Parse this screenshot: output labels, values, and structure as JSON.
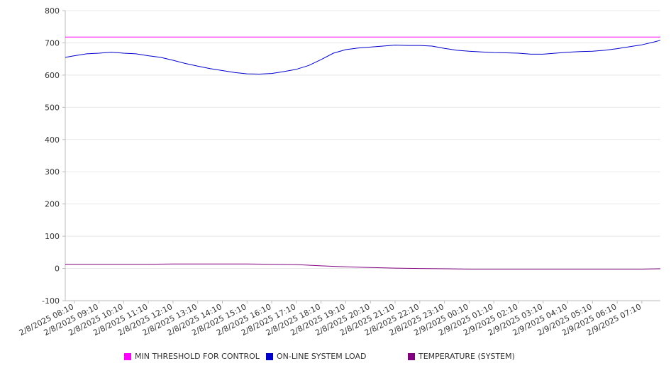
{
  "chart_data": {
    "type": "line",
    "ylim": [
      -100,
      800
    ],
    "yticks": [
      -100,
      0,
      100,
      200,
      300,
      400,
      500,
      600,
      700,
      800
    ],
    "grid": true,
    "legend_position": "bottom",
    "xlim": [
      "2/8/2025 07:48",
      "2/9/2025 07:55"
    ],
    "x_tick_labels": [
      "2/8/2025 08:10",
      "2/8/2025 09:10",
      "2/8/2025 10:10",
      "2/8/2025 11:10",
      "2/8/2025 12:10",
      "2/8/2025 13:10",
      "2/8/2025 14:10",
      "2/8/2025 15:10",
      "2/8/2025 16:10",
      "2/8/2025 17:10",
      "2/8/2025 18:10",
      "2/8/2025 19:10",
      "2/8/2025 20:10",
      "2/8/2025 21:10",
      "2/8/2025 22:10",
      "2/8/2025 23:10",
      "2/9/2025 00:10",
      "2/9/2025 01:10",
      "2/9/2025 02:10",
      "2/9/2025 03:10",
      "2/9/2025 04:10",
      "2/9/2025 05:10",
      "2/9/2025 06:10",
      "2/9/2025 07:10"
    ],
    "series": [
      {
        "name": "MIN THRESHOLD FOR CONTROL",
        "color": "#ff00ff",
        "x": [
          "2/8/2025 07:48",
          "2/9/2025 07:55"
        ],
        "values": [
          718,
          718
        ]
      },
      {
        "name": "ON-LINE SYSTEM LOAD",
        "color": "#0000cc",
        "x": [
          "2/8/2025 07:48",
          "2/8/2025 08:10",
          "2/8/2025 08:40",
          "2/8/2025 09:10",
          "2/8/2025 09:40",
          "2/8/2025 10:10",
          "2/8/2025 10:40",
          "2/8/2025 11:10",
          "2/8/2025 11:40",
          "2/8/2025 12:10",
          "2/8/2025 12:40",
          "2/8/2025 13:10",
          "2/8/2025 13:40",
          "2/8/2025 14:10",
          "2/8/2025 14:40",
          "2/8/2025 15:10",
          "2/8/2025 15:40",
          "2/8/2025 16:10",
          "2/8/2025 16:40",
          "2/8/2025 17:10",
          "2/8/2025 17:40",
          "2/8/2025 18:10",
          "2/8/2025 18:40",
          "2/8/2025 19:10",
          "2/8/2025 19:40",
          "2/8/2025 20:10",
          "2/8/2025 20:40",
          "2/8/2025 21:10",
          "2/8/2025 21:40",
          "2/8/2025 22:10",
          "2/8/2025 22:40",
          "2/8/2025 23:10",
          "2/8/2025 23:40",
          "2/9/2025 00:10",
          "2/9/2025 00:40",
          "2/9/2025 01:10",
          "2/9/2025 01:40",
          "2/9/2025 02:10",
          "2/9/2025 02:40",
          "2/9/2025 03:10",
          "2/9/2025 03:40",
          "2/9/2025 04:10",
          "2/9/2025 04:40",
          "2/9/2025 05:10",
          "2/9/2025 05:40",
          "2/9/2025 06:10",
          "2/9/2025 06:40",
          "2/9/2025 07:10",
          "2/9/2025 07:40",
          "2/9/2025 07:55"
        ],
        "values": [
          655,
          660,
          666,
          668,
          671,
          668,
          666,
          660,
          655,
          646,
          636,
          628,
          620,
          614,
          608,
          604,
          603,
          605,
          611,
          618,
          630,
          648,
          668,
          679,
          684,
          687,
          690,
          693,
          692,
          692,
          690,
          683,
          677,
          674,
          672,
          670,
          669,
          668,
          665,
          665,
          668,
          671,
          673,
          674,
          677,
          682,
          688,
          694,
          703,
          708
        ]
      },
      {
        "name": "TEMPERATURE (SYSTEM)",
        "color": "#800080",
        "x": [
          "2/8/2025 07:48",
          "2/8/2025 09:10",
          "2/8/2025 10:10",
          "2/8/2025 11:10",
          "2/8/2025 12:10",
          "2/8/2025 13:10",
          "2/8/2025 14:10",
          "2/8/2025 15:10",
          "2/8/2025 16:10",
          "2/8/2025 17:10",
          "2/8/2025 18:10",
          "2/8/2025 19:10",
          "2/8/2025 20:10",
          "2/8/2025 21:10",
          "2/8/2025 22:10",
          "2/8/2025 23:10",
          "2/9/2025 00:10",
          "2/9/2025 01:10",
          "2/9/2025 02:10",
          "2/9/2025 03:10",
          "2/9/2025 04:10",
          "2/9/2025 05:10",
          "2/9/2025 06:10",
          "2/9/2025 07:10",
          "2/9/2025 07:55"
        ],
        "values": [
          13,
          13,
          13,
          13,
          14,
          14,
          14,
          14,
          13,
          12,
          8,
          5,
          3,
          1,
          0,
          -1,
          -2,
          -2,
          -2,
          -2,
          -2,
          -2,
          -2,
          -2,
          -1
        ]
      }
    ]
  }
}
